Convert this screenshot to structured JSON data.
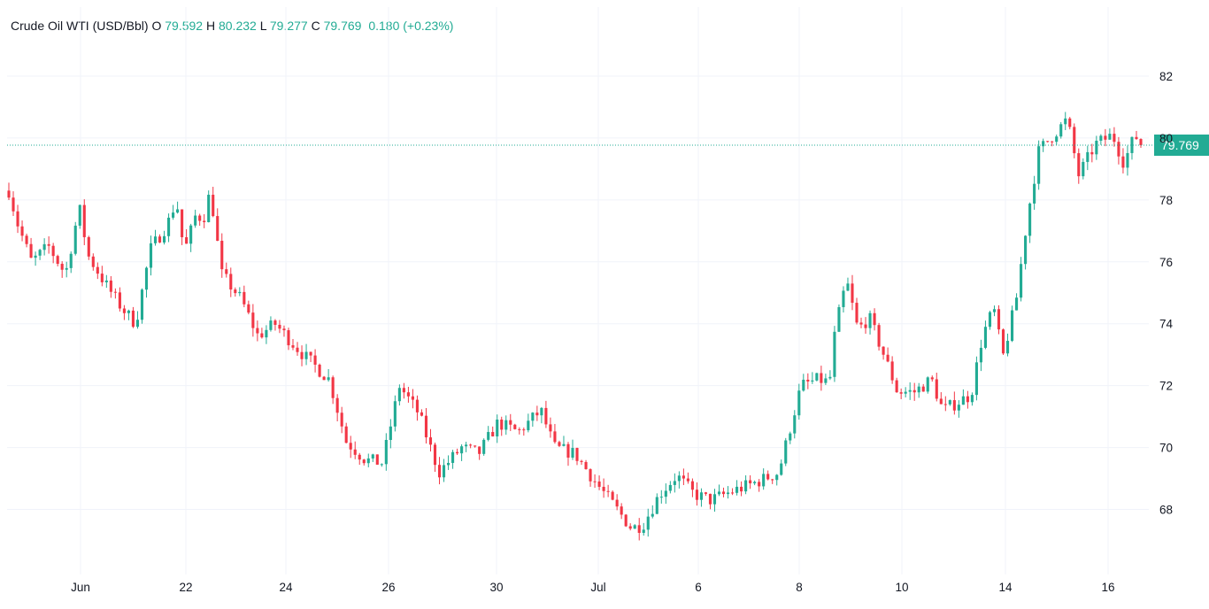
{
  "legend": {
    "symbol": "Crude Oil WTI (USD/Bbl)",
    "o_key": "O",
    "o_val": "79.592",
    "h_key": "H",
    "h_val": "80.232",
    "l_key": "L",
    "l_val": "79.277",
    "c_key": "C",
    "c_val": "79.769",
    "change": "0.180 (+0.23%)"
  },
  "colors": {
    "up": "#22ab94",
    "down": "#f23645",
    "grid": "#f0f3fa",
    "price_line": "#22ab94",
    "text": "#131722"
  },
  "chart_data": {
    "type": "candlestick",
    "y_ticks": [
      "68",
      "70",
      "72",
      "74",
      "76",
      "78",
      "80",
      "82"
    ],
    "x_ticks": [
      "Jun",
      "22",
      "24",
      "26",
      "30",
      "Jul",
      "6",
      "8",
      "10",
      "14",
      "16"
    ],
    "ylim": [
      65.9,
      83.2
    ],
    "last_price": 79.769,
    "last_price_label": "79.769",
    "grid": true,
    "path_points": [
      [
        0,
        78.3
      ],
      [
        0.008,
        77.2
      ],
      [
        0.02,
        76.0
      ],
      [
        0.035,
        76.5
      ],
      [
        0.05,
        75.6
      ],
      [
        0.058,
        77.0
      ],
      [
        0.062,
        77.8
      ],
      [
        0.07,
        76.2
      ],
      [
        0.085,
        75.3
      ],
      [
        0.1,
        74.5
      ],
      [
        0.112,
        74.0
      ],
      [
        0.125,
        76.4
      ],
      [
        0.14,
        77.2
      ],
      [
        0.148,
        78.0
      ],
      [
        0.155,
        76.3
      ],
      [
        0.165,
        77.5
      ],
      [
        0.172,
        77.4
      ],
      [
        0.178,
        78.3
      ],
      [
        0.188,
        75.6
      ],
      [
        0.205,
        74.8
      ],
      [
        0.22,
        73.6
      ],
      [
        0.235,
        74.0
      ],
      [
        0.26,
        73.0
      ],
      [
        0.283,
        72.2
      ],
      [
        0.298,
        70.2
      ],
      [
        0.315,
        69.6
      ],
      [
        0.33,
        69.5
      ],
      [
        0.345,
        72.0
      ],
      [
        0.362,
        71.1
      ],
      [
        0.38,
        69.2
      ],
      [
        0.4,
        70.0
      ],
      [
        0.415,
        69.8
      ],
      [
        0.432,
        70.8
      ],
      [
        0.45,
        70.5
      ],
      [
        0.47,
        71.2
      ],
      [
        0.482,
        70.0
      ],
      [
        0.5,
        69.8
      ],
      [
        0.52,
        68.8
      ],
      [
        0.535,
        68.1
      ],
      [
        0.55,
        67.4
      ],
      [
        0.56,
        67.5
      ],
      [
        0.575,
        68.5
      ],
      [
        0.59,
        69.1
      ],
      [
        0.605,
        68.5
      ],
      [
        0.62,
        68.3
      ],
      [
        0.64,
        68.6
      ],
      [
        0.655,
        68.8
      ],
      [
        0.668,
        69.0
      ],
      [
        0.68,
        69.2
      ],
      [
        0.69,
        70.6
      ],
      [
        0.7,
        72.0
      ],
      [
        0.715,
        72.2
      ],
      [
        0.725,
        72.1
      ],
      [
        0.73,
        73.8
      ],
      [
        0.74,
        75.4
      ],
      [
        0.75,
        73.8
      ],
      [
        0.76,
        74.2
      ],
      [
        0.775,
        72.8
      ],
      [
        0.785,
        71.8
      ],
      [
        0.8,
        71.8
      ],
      [
        0.815,
        72.2
      ],
      [
        0.825,
        71.2
      ],
      [
        0.835,
        71.4
      ],
      [
        0.85,
        71.7
      ],
      [
        0.86,
        73.6
      ],
      [
        0.87,
        74.5
      ],
      [
        0.878,
        72.9
      ],
      [
        0.89,
        74.8
      ],
      [
        0.9,
        77.5
      ],
      [
        0.91,
        79.6
      ],
      [
        0.925,
        80.2
      ],
      [
        0.935,
        80.6
      ],
      [
        0.945,
        78.8
      ],
      [
        0.96,
        79.8
      ],
      [
        0.975,
        80.1
      ],
      [
        0.985,
        79.2
      ],
      [
        0.995,
        80.1
      ],
      [
        1.0,
        79.769
      ]
    ]
  }
}
